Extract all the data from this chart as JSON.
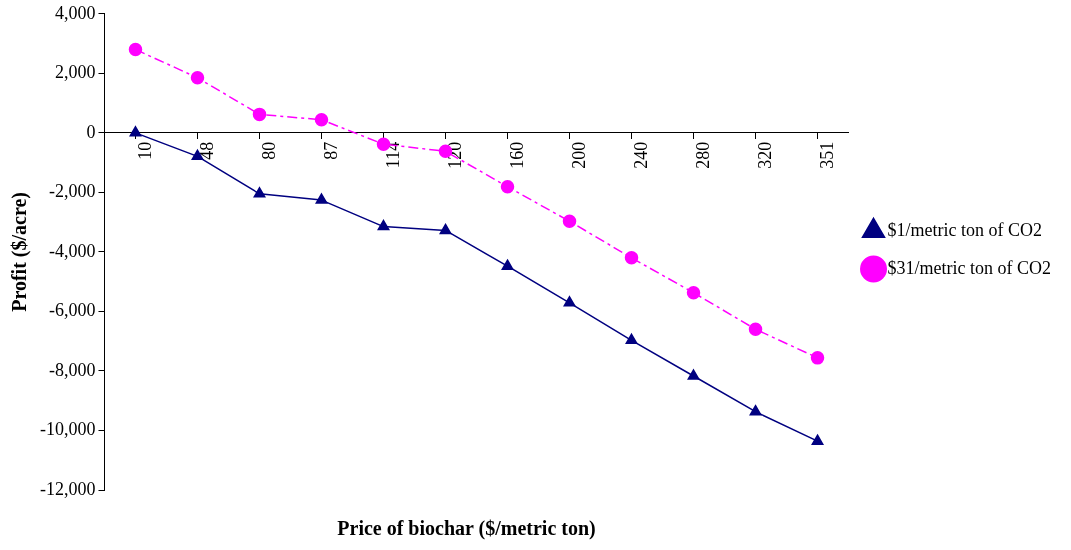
{
  "chart_data": {
    "type": "line",
    "xlabel": "Price of biochar ($/metric ton)",
    "ylabel": "Profit ($/acre)",
    "categories": [
      "10",
      "48",
      "80",
      "87",
      "114",
      "120",
      "160",
      "200",
      "240",
      "280",
      "320",
      "351"
    ],
    "series": [
      {
        "name": "$1/metric ton of CO2",
        "color": "#000080",
        "marker": "triangle",
        "line_style": "solid",
        "values": [
          0,
          -790,
          -2050,
          -2260,
          -3150,
          -3280,
          -4480,
          -5710,
          -6970,
          -8170,
          -9370,
          -10360
        ]
      },
      {
        "name": "$31/metric ton of CO2",
        "color": "#ff00ff",
        "marker": "circle",
        "line_style": "dashed",
        "values": [
          2800,
          1850,
          620,
          440,
          -380,
          -620,
          -1810,
          -2970,
          -4200,
          -5370,
          -6600,
          -7560
        ]
      }
    ],
    "ylim": [
      -12000,
      4000
    ],
    "yticks": [
      {
        "value": -12000,
        "label": "-12,000"
      },
      {
        "value": -10000,
        "label": "-10,000"
      },
      {
        "value": -8000,
        "label": "-8,000"
      },
      {
        "value": -6000,
        "label": "-6,000"
      },
      {
        "value": -4000,
        "label": "-4,000"
      },
      {
        "value": -2000,
        "label": "-2,000"
      },
      0,
      {
        "value": 2000,
        "label": "2,000"
      },
      {
        "value": 4000,
        "label": "4,000"
      }
    ],
    "grid": false,
    "legend": "right"
  }
}
